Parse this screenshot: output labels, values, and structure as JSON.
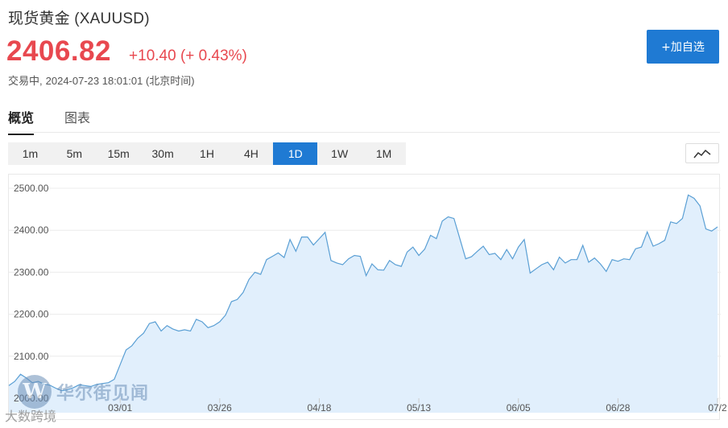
{
  "header": {
    "title": "现货黄金 (XAUUSD)",
    "price": "2406.82",
    "change": "+10.40 (+ 0.43%)",
    "status": "交易中,",
    "datetime": "2024-07-23 18:01:01 (北京时间)",
    "add_button": "+加自选"
  },
  "tabs": [
    {
      "label": "概览",
      "active": true
    },
    {
      "label": "图表",
      "active": false
    }
  ],
  "periods": [
    {
      "label": "1m",
      "active": false
    },
    {
      "label": "5m",
      "active": false
    },
    {
      "label": "15m",
      "active": false
    },
    {
      "label": "30m",
      "active": false
    },
    {
      "label": "1H",
      "active": false
    },
    {
      "label": "4H",
      "active": false
    },
    {
      "label": "1D",
      "active": true
    },
    {
      "label": "1W",
      "active": false
    },
    {
      "label": "1M",
      "active": false
    }
  ],
  "chart_type_icon": "line-chart-icon",
  "watermark": {
    "text": "华尔街见闻",
    "sub": "大数跨境"
  },
  "colors": {
    "accent": "#1f7ad3",
    "up": "#e8484f",
    "area_fill": "#e1effc",
    "line": "#5a9fd4"
  },
  "chart_data": {
    "type": "area",
    "ylim": [
      2000,
      2520
    ],
    "yticks": [
      "2000.00",
      "2100.00",
      "2200.00",
      "2300.00",
      "2400.00",
      "2500.00"
    ],
    "xtick_labels": [
      {
        "label": "03/01",
        "index": 19
      },
      {
        "label": "03/26",
        "index": 36
      },
      {
        "label": "04/18",
        "index": 53
      },
      {
        "label": "05/13",
        "index": 70
      },
      {
        "label": "06/05",
        "index": 87
      },
      {
        "label": "06/28",
        "index": 104
      },
      {
        "label": "07/2",
        "index": 121
      }
    ],
    "values": [
      2030,
      2040,
      2057,
      2048,
      2037,
      2040,
      2034,
      2031,
      2024,
      2018,
      2020,
      2025,
      2032,
      2030,
      2028,
      2033,
      2035,
      2037,
      2045,
      2080,
      2115,
      2125,
      2143,
      2155,
      2178,
      2182,
      2160,
      2173,
      2165,
      2160,
      2163,
      2160,
      2188,
      2182,
      2168,
      2173,
      2182,
      2198,
      2230,
      2235,
      2252,
      2283,
      2300,
      2295,
      2330,
      2338,
      2346,
      2335,
      2378,
      2350,
      2384,
      2384,
      2365,
      2380,
      2395,
      2328,
      2322,
      2318,
      2332,
      2340,
      2338,
      2292,
      2320,
      2306,
      2305,
      2328,
      2318,
      2314,
      2348,
      2360,
      2340,
      2355,
      2388,
      2380,
      2422,
      2432,
      2428,
      2380,
      2332,
      2337,
      2350,
      2362,
      2342,
      2345,
      2330,
      2354,
      2332,
      2360,
      2378,
      2298,
      2308,
      2318,
      2324,
      2306,
      2336,
      2322,
      2330,
      2330,
      2364,
      2324,
      2334,
      2320,
      2302,
      2330,
      2326,
      2332,
      2330,
      2356,
      2360,
      2396,
      2362,
      2368,
      2376,
      2420,
      2416,
      2428,
      2484,
      2476,
      2458,
      2403,
      2398,
      2408
    ]
  }
}
